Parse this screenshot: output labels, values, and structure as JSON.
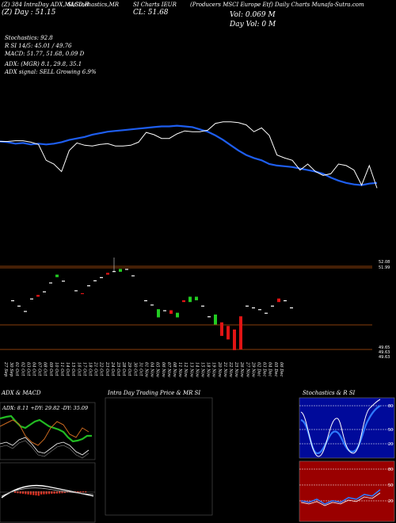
{
  "header": {
    "l1": [
      "(Z) 384 IntraDay ADX,MACD,R",
      "SI,Stochastics,MR",
      "SI Charts IEUR",
      "(Producers MSCI Europe Etf) Daily Charts Munafa-Sutra.com"
    ],
    "day_change": "(Z) Day : 51.15",
    "close": "CL: 51.68",
    "vol": "Vol: 0.069 M",
    "day_vol": "Day Vol: 0  M"
  },
  "indicators": [
    "Stochastics: 92.8",
    "R              SI 14/5: 45.01 / 49.76",
    "MACD: 51.77, 51.68, 0.09 D",
    "ADX:                 (MGR) 8.1, 29.8, 35.1",
    "ADX  signal: SELL Growing 6.9%"
  ],
  "price_levels": {
    "top1": "52.08",
    "top2": "51.99",
    "bottom1": "49.65",
    "bottom2": "49.63",
    "bottom3": "49.63"
  },
  "chart_data": {
    "type": "candlestick",
    "dates": [
      "27 Sep",
      "30 Sep",
      "01 Oct",
      "02 Oct",
      "03 Oct",
      "04 Oct",
      "07 Oct",
      "08 Oct",
      "09 Oct",
      "10 Oct",
      "11 Oct",
      "14 Oct",
      "15 Oct",
      "16 Oct",
      "17 Oct",
      "18 Oct",
      "21 Oct",
      "22 Oct",
      "23 Oct",
      "24 Oct",
      "25 Oct",
      "28 Oct",
      "29 Oct",
      "30 Oct",
      "31 Oct",
      "01 Nov",
      "04 Nov",
      "05 Nov",
      "06 Nov",
      "07 Nov",
      "08 Nov",
      "11 Nov",
      "12 Nov",
      "13 Nov",
      "14 Nov",
      "15 Nov",
      "18 Nov",
      "19 Nov",
      "20 Nov",
      "21 Nov",
      "22 Nov",
      "25 Nov",
      "26 Nov",
      "27 Nov",
      "29 Nov",
      "02 Dec",
      "03 Dec",
      "04 Dec",
      "05 Dec",
      "06 Dec"
    ],
    "candles": [
      {
        "i": 1,
        "o": 51.1,
        "c": 51.1,
        "d": "flat"
      },
      {
        "i": 2,
        "o": 50.95,
        "c": 50.95,
        "d": "flat"
      },
      {
        "i": 3,
        "o": 50.8,
        "c": 50.8,
        "d": "flat"
      },
      {
        "i": 4,
        "o": 51.15,
        "c": 51.15,
        "d": "flat"
      },
      {
        "i": 5,
        "o": 51.2,
        "c": 51.25,
        "d": "down"
      },
      {
        "i": 6,
        "o": 51.35,
        "c": 51.35,
        "d": "flat"
      },
      {
        "i": 7,
        "o": 51.6,
        "c": 51.6,
        "d": "flat"
      },
      {
        "i": 8,
        "o": 51.75,
        "c": 51.82,
        "d": "up"
      },
      {
        "i": 9,
        "o": 51.65,
        "c": 51.65,
        "d": "flat"
      },
      {
        "i": 11,
        "o": 51.38,
        "c": 51.38,
        "d": "flat"
      },
      {
        "i": 12,
        "o": 51.28,
        "c": 51.3,
        "d": "down"
      },
      {
        "i": 13,
        "o": 51.52,
        "c": 51.52,
        "d": "flat"
      },
      {
        "i": 14,
        "o": 51.66,
        "c": 51.66,
        "d": "flat"
      },
      {
        "i": 15,
        "o": 51.75,
        "c": 51.75,
        "d": "flat"
      },
      {
        "i": 16,
        "o": 51.82,
        "c": 51.87,
        "d": "down"
      },
      {
        "i": 17,
        "o": 51.92,
        "c": 51.92,
        "d": "flat",
        "hi": 52.3
      },
      {
        "i": 18,
        "o": 51.98,
        "c": 51.9,
        "d": "up"
      },
      {
        "i": 19,
        "o": 51.98,
        "c": 51.98,
        "d": "flat"
      },
      {
        "i": 20,
        "o": 51.8,
        "c": 51.8,
        "d": "flat"
      },
      {
        "i": 22,
        "o": 51.1,
        "c": 51.1,
        "d": "flat"
      },
      {
        "i": 23,
        "o": 50.98,
        "c": 50.98,
        "d": "flat"
      },
      {
        "i": 24,
        "o": 50.85,
        "c": 50.62,
        "d": "up"
      },
      {
        "i": 25,
        "o": 50.82,
        "c": 50.82,
        "d": "flat"
      },
      {
        "i": 26,
        "o": 50.82,
        "c": 50.72,
        "d": "down"
      },
      {
        "i": 27,
        "o": 50.75,
        "c": 50.62,
        "d": "up"
      },
      {
        "i": 28,
        "o": 51.05,
        "c": 51.1,
        "d": "down"
      },
      {
        "i": 29,
        "o": 51.2,
        "c": 51.05,
        "d": "up"
      },
      {
        "i": 30,
        "o": 51.2,
        "c": 51.1,
        "d": "up"
      },
      {
        "i": 31,
        "o": 50.95,
        "c": 50.95,
        "d": "flat"
      },
      {
        "i": 32,
        "o": 50.65,
        "c": 50.65,
        "d": "flat"
      },
      {
        "i": 33,
        "o": 50.7,
        "c": 50.42,
        "d": "up"
      },
      {
        "i": 34,
        "o": 50.48,
        "c": 50.1,
        "d": "down"
      },
      {
        "i": 35,
        "o": 50.38,
        "c": 50.0,
        "d": "down"
      },
      {
        "i": 36,
        "o": 50.28,
        "c": 49.7,
        "d": "down"
      },
      {
        "i": 37,
        "o": 50.65,
        "c": 49.72,
        "d": "down"
      },
      {
        "i": 38,
        "o": 50.95,
        "c": 50.95,
        "d": "flat"
      },
      {
        "i": 39,
        "o": 50.9,
        "c": 50.9,
        "d": "flat"
      },
      {
        "i": 40,
        "o": 50.85,
        "c": 50.85,
        "d": "flat"
      },
      {
        "i": 41,
        "o": 50.75,
        "c": 50.75,
        "d": "flat"
      },
      {
        "i": 42,
        "o": 50.95,
        "c": 50.95,
        "d": "flat"
      },
      {
        "i": 43,
        "o": 51.05,
        "c": 51.15,
        "d": "down"
      },
      {
        "i": 44,
        "o": 51.1,
        "c": 51.1,
        "d": "flat"
      },
      {
        "i": 45,
        "o": 50.9,
        "c": 50.9,
        "d": "flat"
      }
    ],
    "price_ylim": [
      49.63,
      52.3
    ],
    "ma_line": [
      0.3,
      0.31,
      0.33,
      0.32,
      0.34,
      0.33,
      0.34,
      0.33,
      0.31,
      0.28,
      0.26,
      0.24,
      0.21,
      0.19,
      0.17,
      0.16,
      0.15,
      0.14,
      0.13,
      0.12,
      0.11,
      0.1,
      0.1,
      0.09,
      0.1,
      0.11,
      0.14,
      0.17,
      0.22,
      0.28,
      0.35,
      0.42,
      0.48,
      0.52,
      0.55,
      0.6,
      0.62,
      0.63,
      0.64,
      0.66,
      0.68,
      0.7,
      0.73,
      0.78,
      0.82,
      0.85,
      0.87,
      0.88,
      0.86,
      0.85
    ],
    "price_line": [
      0.3,
      0.3,
      0.29,
      0.29,
      0.31,
      0.34,
      0.55,
      0.6,
      0.7,
      0.42,
      0.32,
      0.35,
      0.36,
      0.34,
      0.33,
      0.36,
      0.36,
      0.35,
      0.31,
      0.18,
      0.21,
      0.26,
      0.26,
      0.2,
      0.16,
      0.17,
      0.17,
      0.15,
      0.06,
      0.04,
      0.04,
      0.05,
      0.08,
      0.17,
      0.12,
      0.22,
      0.48,
      0.52,
      0.55,
      0.68,
      0.6,
      0.7,
      0.75,
      0.73,
      0.6,
      0.62,
      0.68,
      0.88,
      0.62,
      0.92
    ],
    "bottom_panels": [
      {
        "title": "ADX  & MACD",
        "sub": "ADX: 8.11  +DY: 29.82  -DY: 35.09"
      },
      {
        "title": "Intra  Day Trading Price  & MR                 SI"
      },
      {
        "title": "Stochastics & R                  SI",
        "levels": [
          "80",
          "50",
          "20"
        ],
        "rsi_levels": [
          "80",
          "50",
          "20"
        ]
      }
    ]
  }
}
